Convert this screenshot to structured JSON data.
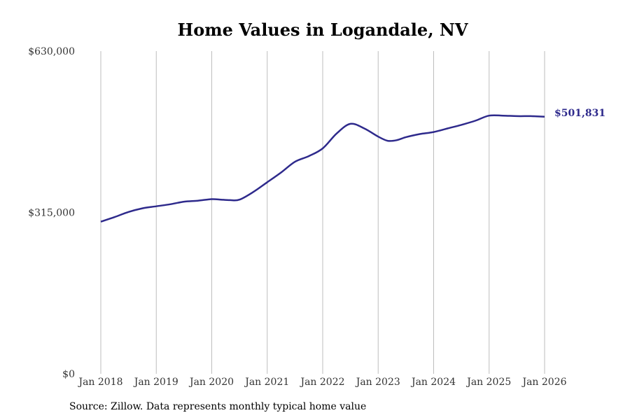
{
  "chart_data": {
    "type": "line",
    "title": "Home Values in Logandale, NV",
    "xlabel": "",
    "ylabel": "",
    "ylim": [
      0,
      630000
    ],
    "y_ticks": [
      0,
      315000,
      630000
    ],
    "y_tick_labels": [
      "$0",
      "$315,000",
      "$630,000"
    ],
    "x_tick_labels": [
      "Jan 2018",
      "Jan 2019",
      "Jan 2020",
      "Jan 2021",
      "Jan 2022",
      "Jan 2023",
      "Jan 2024",
      "Jan 2025",
      "Jan 2026"
    ],
    "x_start_year": 2018,
    "x_end_year": 2026,
    "grid": "vertical",
    "line_color": "#2e2a8c",
    "series": [
      {
        "name": "Typical home value",
        "points": [
          [
            2018.0,
            297000
          ],
          [
            2018.25,
            306000
          ],
          [
            2018.5,
            316000
          ],
          [
            2018.75,
            323000
          ],
          [
            2019.0,
            327000
          ],
          [
            2019.25,
            331000
          ],
          [
            2019.5,
            336000
          ],
          [
            2019.75,
            338000
          ],
          [
            2020.0,
            341000
          ],
          [
            2020.17,
            340000
          ],
          [
            2020.33,
            339000
          ],
          [
            2020.5,
            340000
          ],
          [
            2020.75,
            355000
          ],
          [
            2021.0,
            374000
          ],
          [
            2021.25,
            393000
          ],
          [
            2021.5,
            414000
          ],
          [
            2021.75,
            425000
          ],
          [
            2022.0,
            440000
          ],
          [
            2022.25,
            469000
          ],
          [
            2022.5,
            488000
          ],
          [
            2022.75,
            479000
          ],
          [
            2023.0,
            463000
          ],
          [
            2023.17,
            455000
          ],
          [
            2023.33,
            456000
          ],
          [
            2023.5,
            462000
          ],
          [
            2023.75,
            468000
          ],
          [
            2024.0,
            472000
          ],
          [
            2024.25,
            479000
          ],
          [
            2024.5,
            486000
          ],
          [
            2024.75,
            494000
          ],
          [
            2025.0,
            504000
          ],
          [
            2025.25,
            504000
          ],
          [
            2025.5,
            503000
          ],
          [
            2025.75,
            503000
          ],
          [
            2026.0,
            501831
          ]
        ]
      }
    ],
    "end_label": "$501,831",
    "source": "Source: Zillow. Data represents monthly typical home value"
  }
}
